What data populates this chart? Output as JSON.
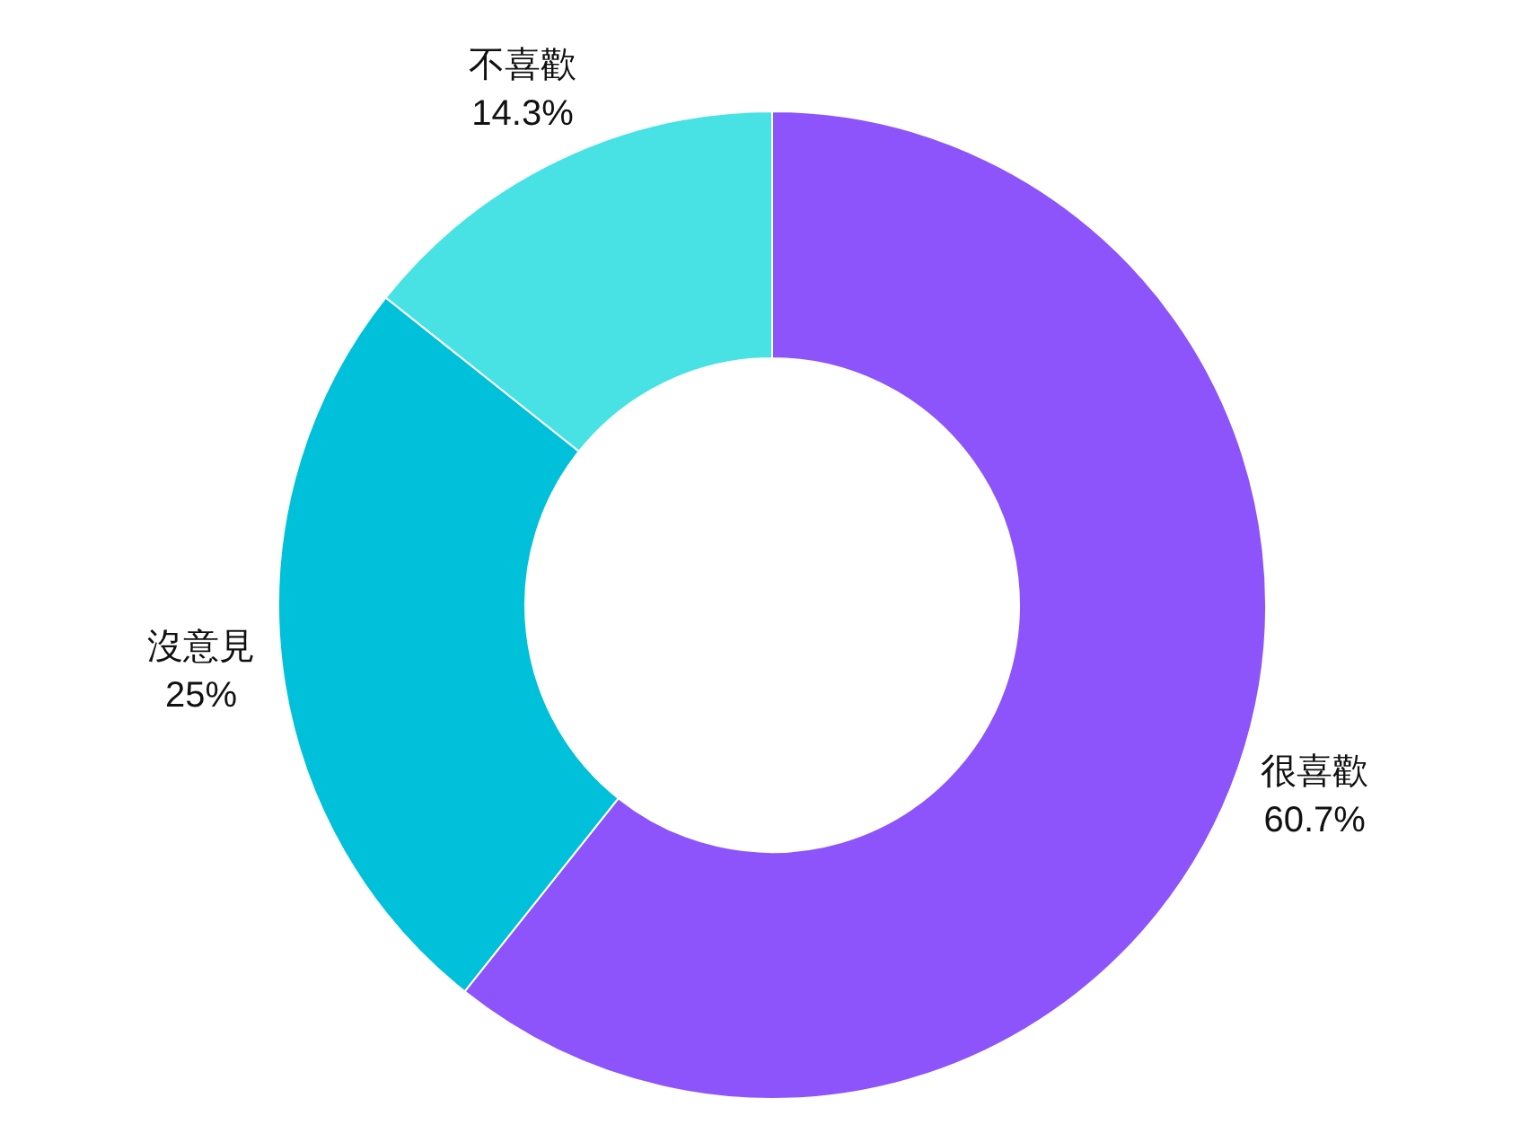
{
  "chart_data": {
    "type": "donut",
    "categories": [
      "很喜歡",
      "沒意見",
      "不喜歡"
    ],
    "values": [
      60.7,
      25,
      14.3
    ],
    "colors": [
      "#8c54fa",
      "#00c0da",
      "#48e2e5"
    ],
    "value_labels": [
      "60.7%",
      "25%",
      "14.3%"
    ]
  }
}
